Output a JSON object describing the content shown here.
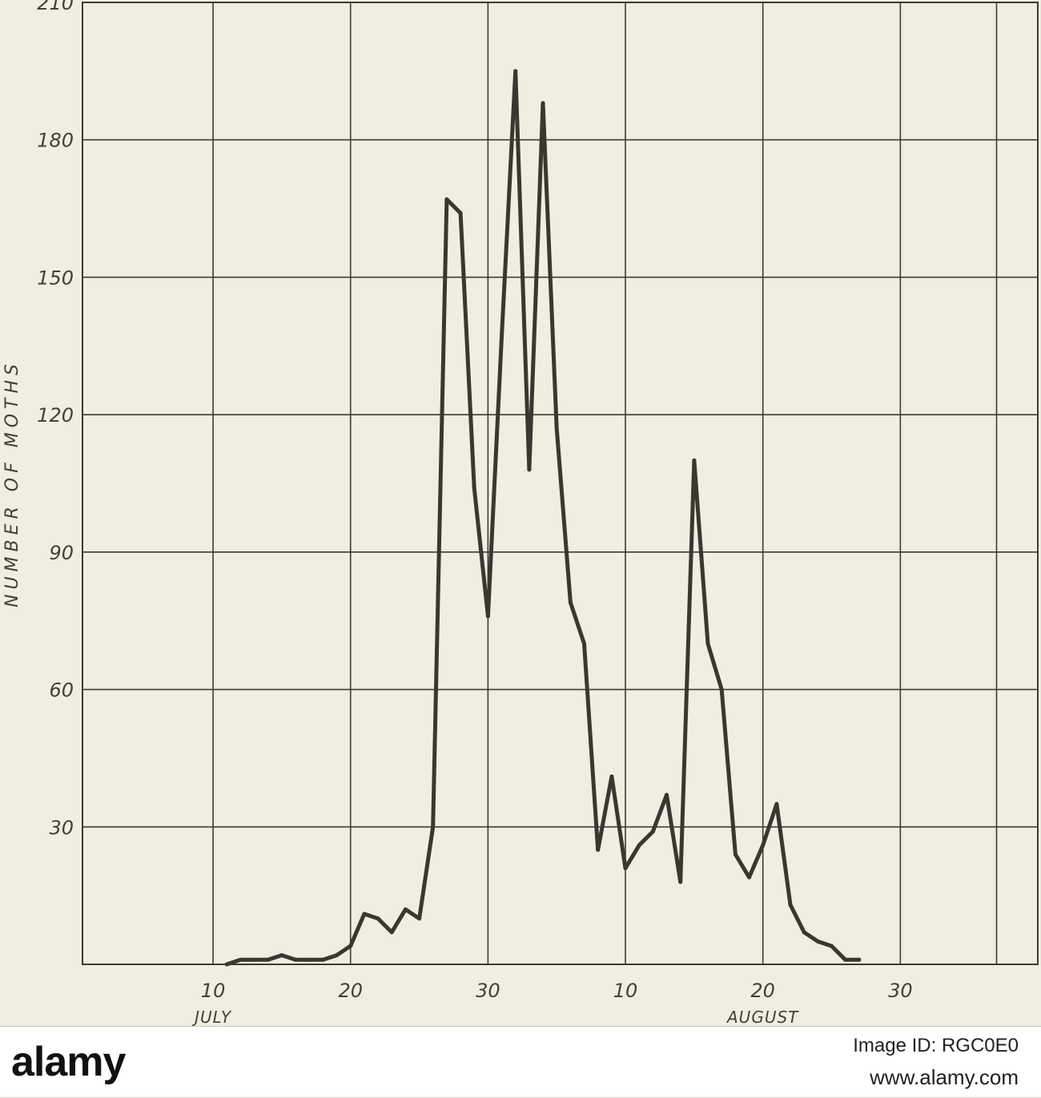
{
  "chart_data": {
    "type": "line",
    "title": "",
    "xlabel": "",
    "ylabel": "NUMBER OF MOTHS",
    "ylim": [
      0,
      210
    ],
    "y_ticks": [
      "30",
      "60",
      "90",
      "120",
      "150",
      "180",
      "210"
    ],
    "x_tick_labels": [
      "10",
      "20",
      "30",
      "10",
      "20",
      "30"
    ],
    "month_labels": [
      "JULY",
      "AUGUST"
    ],
    "xlim_days_july": [
      0,
      70
    ],
    "grid": true,
    "legend": "none",
    "line_color": "#3b3630",
    "series": [
      {
        "x": [
          11,
          12,
          13,
          14,
          15,
          16,
          17,
          18,
          19,
          20,
          21,
          22,
          23,
          24,
          25,
          26,
          27,
          28,
          29,
          30,
          31,
          32,
          33,
          34,
          35,
          36,
          37,
          38,
          39,
          40,
          41,
          42,
          43,
          44,
          45,
          46,
          47,
          48,
          49,
          50,
          51,
          52,
          53,
          54,
          55,
          56,
          57,
          58,
          59,
          60,
          61,
          62,
          63,
          64,
          65,
          66,
          67,
          68,
          69,
          70
        ],
        "values": [
          0,
          1,
          1,
          1,
          2,
          1,
          1,
          1,
          2,
          4,
          11,
          10,
          7,
          12,
          10,
          30,
          167,
          164,
          104,
          76,
          137,
          195,
          108,
          188,
          117,
          79,
          70,
          25,
          41,
          21,
          26,
          29,
          37,
          18,
          110,
          70,
          60,
          24,
          19,
          26,
          35,
          13,
          7,
          5,
          4,
          1,
          1,
          null,
          null,
          null,
          null,
          null,
          null,
          null,
          null,
          null,
          null,
          null,
          null,
          null
        ]
      }
    ]
  },
  "watermark": {
    "brand": "alamy",
    "image_id": "Image ID: RGC0E0",
    "site": "www.alamy.com"
  }
}
